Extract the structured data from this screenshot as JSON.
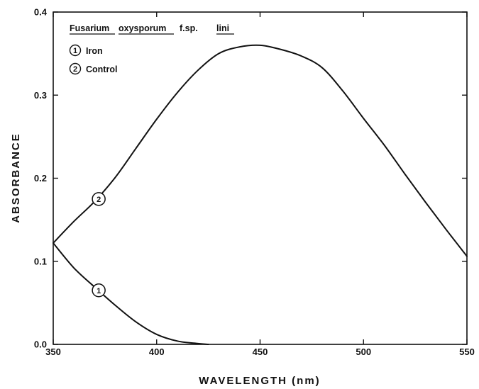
{
  "chart_data": {
    "type": "line",
    "title": "Fusarium oxysporum f.sp. lini",
    "title_parts": [
      "Fusarium",
      "oxysporum",
      "f.sp.",
      "lini"
    ],
    "xlabel": "WAVELENGTH (nm)",
    "ylabel": "ABSORBANCE",
    "xlim": [
      350,
      550
    ],
    "ylim": [
      0,
      0.4
    ],
    "xticks": [
      350,
      400,
      450,
      500,
      550
    ],
    "yticks": [
      0.0,
      0.1,
      0.2,
      0.3,
      0.4
    ],
    "xtick_labels": [
      "350",
      "400",
      "450",
      "500",
      "550"
    ],
    "ytick_labels": [
      "0.0",
      "0.1",
      "0.2",
      "0.3",
      "0.4"
    ],
    "grid": false,
    "legend_position": "top-left",
    "legend": [
      {
        "marker": "1",
        "label": "Iron"
      },
      {
        "marker": "2",
        "label": "Control"
      }
    ],
    "series": [
      {
        "name": "Iron",
        "marker": "1",
        "x": [
          350,
          360,
          370,
          380,
          390,
          400,
          410,
          420,
          425
        ],
        "y": [
          0.122,
          0.092,
          0.069,
          0.047,
          0.027,
          0.012,
          0.004,
          0.001,
          0.0
        ]
      },
      {
        "name": "Control",
        "marker": "2",
        "x": [
          350,
          360,
          370,
          380,
          390,
          400,
          410,
          420,
          430,
          440,
          450,
          460,
          470,
          480,
          490,
          500,
          510,
          520,
          530,
          540,
          550
        ],
        "y": [
          0.122,
          0.148,
          0.172,
          0.201,
          0.236,
          0.271,
          0.303,
          0.33,
          0.35,
          0.358,
          0.36,
          0.355,
          0.347,
          0.333,
          0.305,
          0.272,
          0.24,
          0.205,
          0.171,
          0.138,
          0.106
        ]
      }
    ],
    "curve_markers": [
      {
        "series": "Control",
        "label": "2",
        "x": 372,
        "y": 0.175
      },
      {
        "series": "Iron",
        "label": "1",
        "x": 372,
        "y": 0.065
      }
    ]
  }
}
